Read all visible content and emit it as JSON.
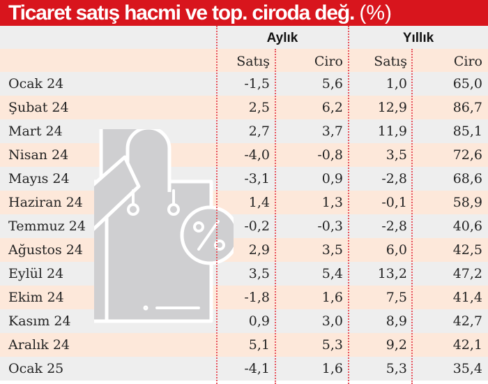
{
  "title": {
    "main": "Ticaret satış hacmi ve top. ciroda değ.",
    "unit": "(%)"
  },
  "groups": {
    "monthly": "Aylık",
    "yearly": "Yıllık"
  },
  "columns": {
    "monthly_sales": "Satış",
    "monthly_revenue": "Ciro",
    "yearly_sales": "Satış",
    "yearly_revenue": "Ciro"
  },
  "colors": {
    "title_bg": "#d8151d",
    "row_gray": "#eeeeee",
    "row_peach": "#fde8da",
    "divider": "#e8505a",
    "icon_fill": "#cfcfd1"
  },
  "icon": "shopping-bag-percent-icon",
  "rows": [
    {
      "month": "Ocak 24",
      "m_sales": "-1,5",
      "m_rev": "5,6",
      "y_sales": "1,0",
      "y_rev": "65,0"
    },
    {
      "month": "Şubat 24",
      "m_sales": "2,5",
      "m_rev": "6,2",
      "y_sales": "12,9",
      "y_rev": "86,7"
    },
    {
      "month": "Mart 24",
      "m_sales": "2,7",
      "m_rev": "3,7",
      "y_sales": "11,9",
      "y_rev": "85,1"
    },
    {
      "month": "Nisan 24",
      "m_sales": "-4,0",
      "m_rev": "-0,8",
      "y_sales": "3,5",
      "y_rev": "72,6"
    },
    {
      "month": "Mayıs 24",
      "m_sales": "-3,1",
      "m_rev": "0,9",
      "y_sales": "-2,8",
      "y_rev": "68,6"
    },
    {
      "month": "Haziran 24",
      "m_sales": "1,4",
      "m_rev": "1,3",
      "y_sales": "-0,1",
      "y_rev": "58,9"
    },
    {
      "month": "Temmuz 24",
      "m_sales": "-0,2",
      "m_rev": "-0,3",
      "y_sales": "-2,8",
      "y_rev": "40,6"
    },
    {
      "month": "Ağustos 24",
      "m_sales": "2,9",
      "m_rev": "3,5",
      "y_sales": "6,0",
      "y_rev": "42,5"
    },
    {
      "month": "Eylül 24",
      "m_sales": "3,5",
      "m_rev": "5,4",
      "y_sales": "13,2",
      "y_rev": "47,2"
    },
    {
      "month": "Ekim 24",
      "m_sales": "-1,8",
      "m_rev": "1,6",
      "y_sales": "7,5",
      "y_rev": "41,4"
    },
    {
      "month": "Kasım 24",
      "m_sales": "0,9",
      "m_rev": "3,0",
      "y_sales": "8,9",
      "y_rev": "42,7"
    },
    {
      "month": "Aralık 24",
      "m_sales": "5,1",
      "m_rev": "5,3",
      "y_sales": "9,2",
      "y_rev": "42,1"
    },
    {
      "month": "Ocak 25",
      "m_sales": "-4,1",
      "m_rev": "1,6",
      "y_sales": "5,3",
      "y_rev": "35,4"
    }
  ],
  "chart_data": {
    "type": "table",
    "title": "Ticaret satış hacmi ve top. ciroda değ. (%)",
    "column_groups": [
      {
        "name": "Aylık",
        "columns": [
          "Satış",
          "Ciro"
        ]
      },
      {
        "name": "Yıllık",
        "columns": [
          "Satış",
          "Ciro"
        ]
      }
    ],
    "categories": [
      "Ocak 24",
      "Şubat 24",
      "Mart 24",
      "Nisan 24",
      "Mayıs 24",
      "Haziran 24",
      "Temmuz 24",
      "Ağustos 24",
      "Eylül 24",
      "Ekim 24",
      "Kasım 24",
      "Aralık 24",
      "Ocak 25"
    ],
    "series": [
      {
        "name": "Aylık Satış",
        "values": [
          -1.5,
          2.5,
          2.7,
          -4.0,
          -3.1,
          1.4,
          -0.2,
          2.9,
          3.5,
          -1.8,
          0.9,
          5.1,
          -4.1
        ]
      },
      {
        "name": "Aylık Ciro",
        "values": [
          5.6,
          6.2,
          3.7,
          -0.8,
          0.9,
          1.3,
          -0.3,
          3.5,
          5.4,
          1.6,
          3.0,
          5.3,
          1.6
        ]
      },
      {
        "name": "Yıllık Satış",
        "values": [
          1.0,
          12.9,
          11.9,
          3.5,
          -2.8,
          -0.1,
          -2.8,
          6.0,
          13.2,
          7.5,
          8.9,
          9.2,
          5.3
        ]
      },
      {
        "name": "Yıllık Ciro",
        "values": [
          65.0,
          86.7,
          85.1,
          72.6,
          68.6,
          58.9,
          40.6,
          42.5,
          47.2,
          41.4,
          42.7,
          42.1,
          35.4
        ]
      }
    ],
    "unit": "%"
  }
}
